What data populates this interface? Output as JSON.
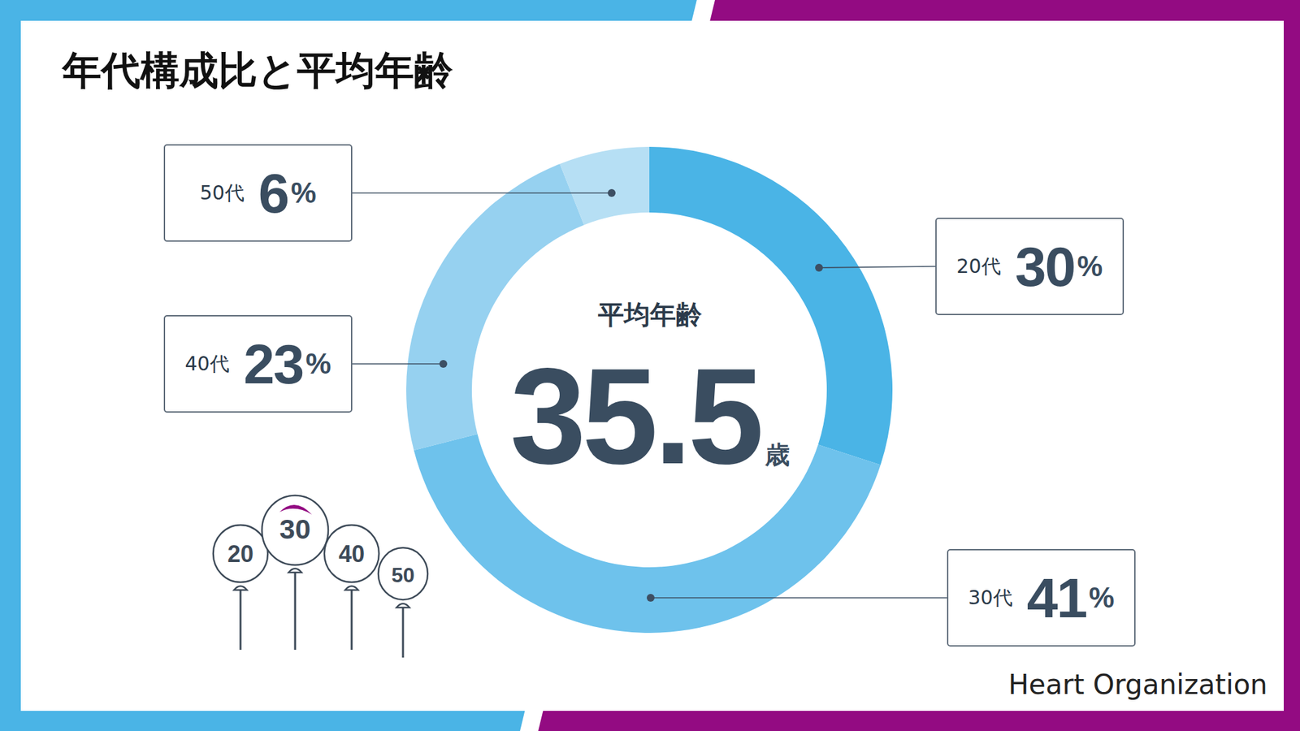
{
  "chart_data": {
    "type": "donut",
    "title": "年代構成比と平均年齢",
    "categories": [
      "20代",
      "30代",
      "40代",
      "50代"
    ],
    "values": [
      30,
      41,
      23,
      6
    ],
    "value_labels": [
      "30%",
      "41%",
      "23%",
      "6%"
    ],
    "colors": [
      "#4ab4e6",
      "#6ec2ec",
      "#96d1f0",
      "#b6dff4"
    ],
    "data_labels": true,
    "center": {
      "label": "平均年齢",
      "value": 35.5,
      "unit": "歳"
    }
  },
  "balloons": [
    "20",
    "30",
    "40",
    "50"
  ],
  "logo": "Heart Organization"
}
